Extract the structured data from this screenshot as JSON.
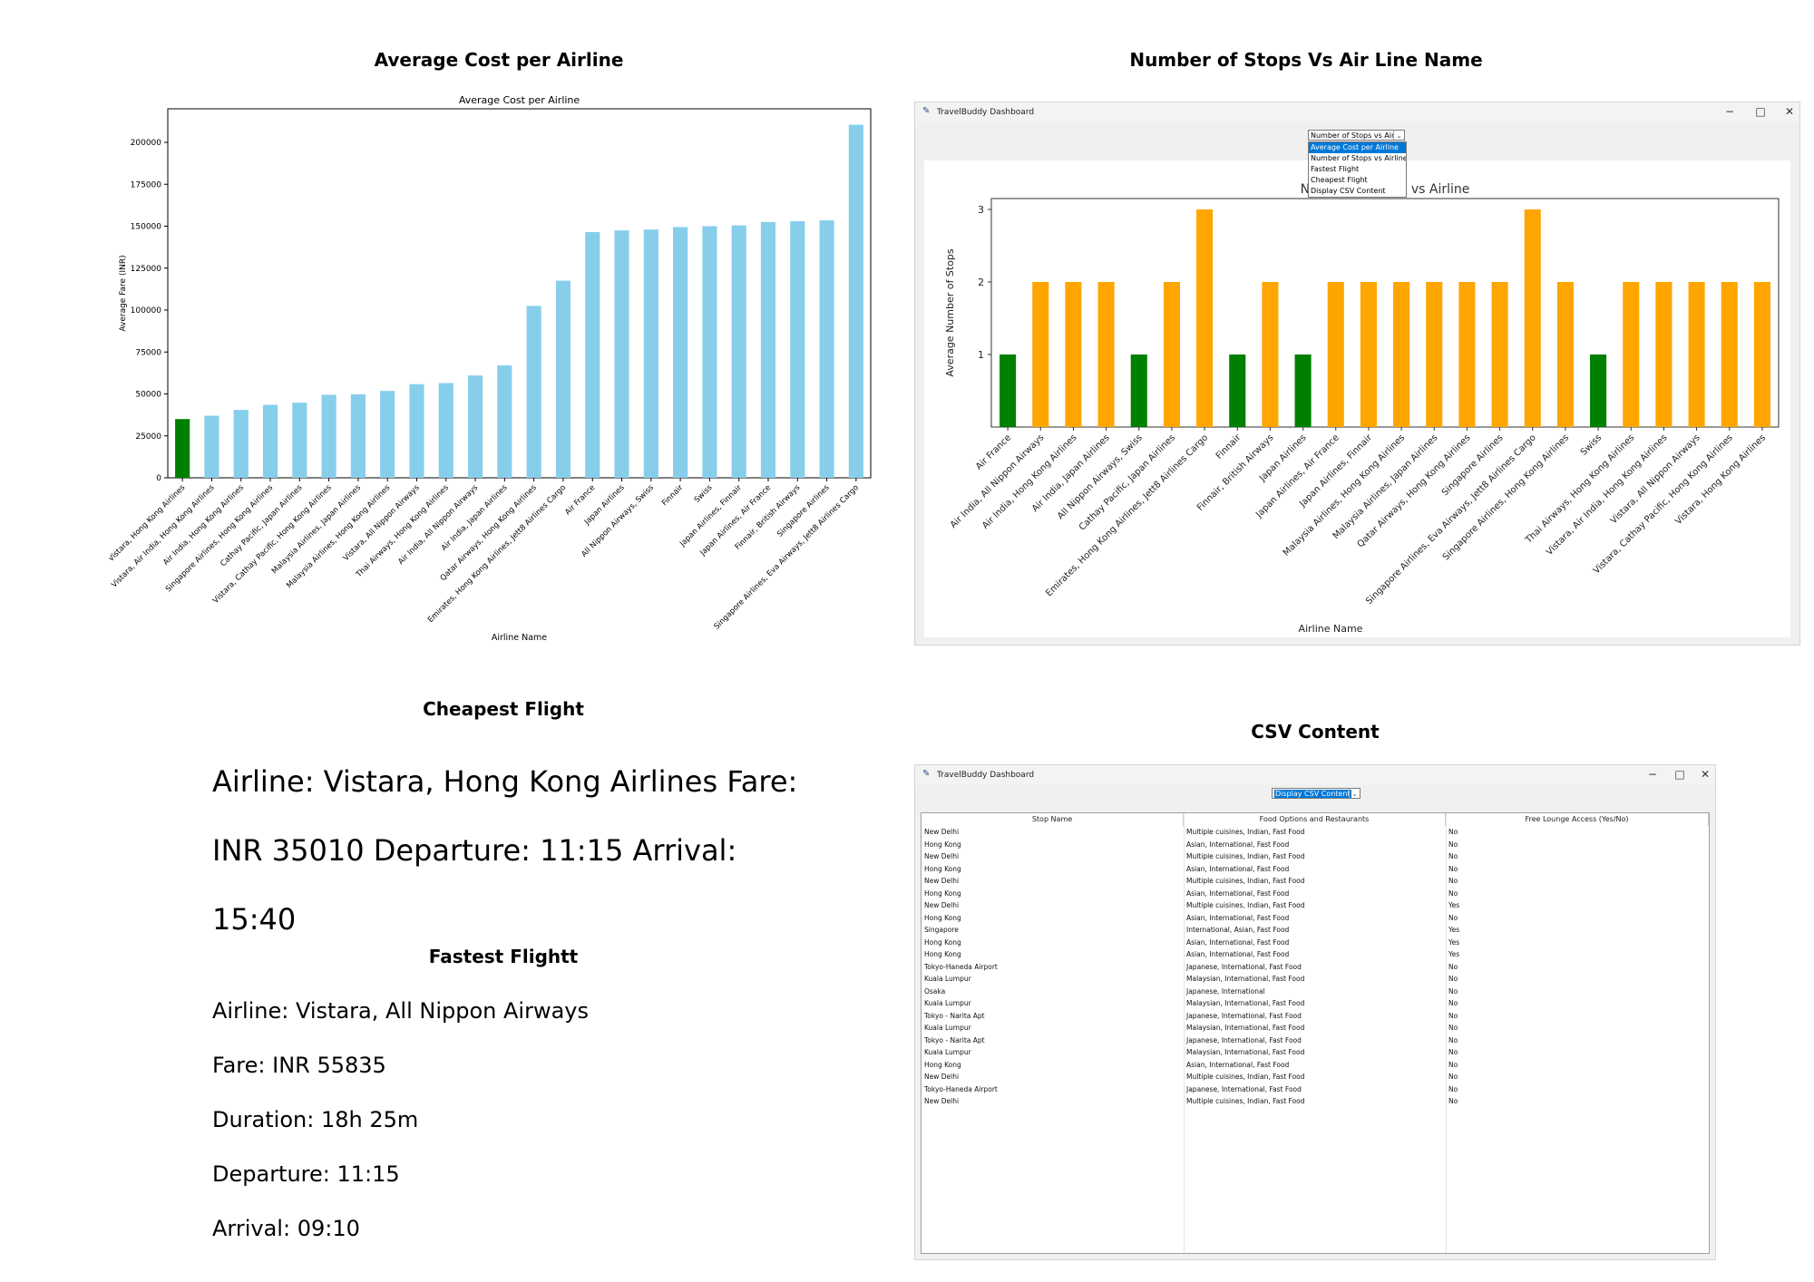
{
  "headings": {
    "avg_cost": "Average Cost per Airline",
    "stops": "Number of Stops Vs Air Line Name",
    "cheapest": "Cheapest Flight",
    "fastest": "Fastest Flightt",
    "csv": "CSV Content"
  },
  "window": {
    "title": "TravelBuddy Dashboard",
    "minimize_glyph": "−",
    "maximize_glyph": "□",
    "close_glyph": "✕",
    "feather_glyph": "✎"
  },
  "stops_window": {
    "combo_value": "Number of Stops vs Airline",
    "combo_arrow": "⌄",
    "options": [
      "Average Cost per Airline",
      "Number of Stops vs Airline",
      "Fastest Flight",
      "Cheapest Flight",
      "Display CSV Content"
    ],
    "selected_option_index": 0
  },
  "csv_window": {
    "combo_value": "Display CSV Content",
    "combo_arrow": "⌄",
    "columns": [
      "Stop Name",
      "Food Options and Restaurants",
      "Free Lounge Access (Yes/No)"
    ],
    "rows": [
      [
        "New Delhi",
        "Multiple cuisines, Indian, Fast Food",
        "No"
      ],
      [
        "Hong Kong",
        "Asian, International, Fast Food",
        "No"
      ],
      [
        "New Delhi",
        "Multiple cuisines, Indian, Fast Food",
        "No"
      ],
      [
        "Hong Kong",
        "Asian, International, Fast Food",
        "No"
      ],
      [
        "New Delhi",
        "Multiple cuisines, Indian, Fast Food",
        "No"
      ],
      [
        "Hong Kong",
        "Asian, International, Fast Food",
        "No"
      ],
      [
        "New Delhi",
        "Multiple cuisines, Indian, Fast Food",
        "Yes"
      ],
      [
        "Hong Kong",
        "Asian, International, Fast Food",
        "No"
      ],
      [
        "Singapore",
        "International, Asian, Fast Food",
        "Yes"
      ],
      [
        "Hong Kong",
        "Asian, International, Fast Food",
        "Yes"
      ],
      [
        "Hong Kong",
        "Asian, International, Fast Food",
        "Yes"
      ],
      [
        "Tokyo-Haneda Airport",
        "Japanese, International, Fast Food",
        "No"
      ],
      [
        "Kuala Lumpur",
        "Malaysian, International, Fast Food",
        "No"
      ],
      [
        "Osaka",
        "Japanese, International",
        "No"
      ],
      [
        "Kuala Lumpur",
        "Malaysian, International, Fast Food",
        "No"
      ],
      [
        "Tokyo - Narita Apt",
        "Japanese, International, Fast Food",
        "No"
      ],
      [
        "Kuala Lumpur",
        "Malaysian, International, Fast Food",
        "No"
      ],
      [
        "Tokyo - Narita Apt",
        "Japanese, International, Fast Food",
        "No"
      ],
      [
        "Kuala Lumpur",
        "Malaysian, International, Fast Food",
        "No"
      ],
      [
        "Hong Kong",
        "Asian, International, Fast Food",
        "No"
      ],
      [
        "New Delhi",
        "Multiple cuisines, Indian, Fast Food",
        "No"
      ],
      [
        "Tokyo-Haneda Airport",
        "Japanese, International, Fast Food",
        "No"
      ],
      [
        "New Delhi",
        "Multiple cuisines, Indian, Fast Food",
        "No"
      ]
    ]
  },
  "cheapest": {
    "lines": [
      "Airline: Vistara, Hong Kong Airlines Fare:",
      "INR 35010 Departure: 11:15 Arrival:",
      "15:40"
    ]
  },
  "fastest": {
    "airline": "Airline: Vistara, All Nippon Airways",
    "fare": "Fare: INR 55835",
    "duration": "Duration: 18h 25m",
    "departure": "Departure: 11:15",
    "arrival": "Arrival: 09:10"
  },
  "colors": {
    "bar_default": "#87ceeb",
    "bar_highlight": "#008000",
    "stops_high": "#ffa500",
    "stops_low": "#008000",
    "selection": "#0078d7"
  },
  "chart_data": [
    {
      "type": "bar",
      "title": "Average Cost per Airline",
      "xlabel": "Airline Name",
      "ylabel": "Average Fare (INR)",
      "ylim": [
        0,
        220000
      ],
      "yticks": [
        0,
        25000,
        50000,
        75000,
        100000,
        125000,
        150000,
        175000,
        200000
      ],
      "grid": false,
      "categories": [
        "Vistara, Hong Kong Airlines",
        "Vistara, Air India, Hong Kong Airlines",
        "Air India, Hong Kong Airlines",
        "Singapore Airlines, Hong Kong Airlines",
        "Cathay Pacific, Japan Airlines",
        "Vistara, Cathay Pacific, Hong Kong Airlines",
        "Malaysia Airlines, Japan Airlines",
        "Malaysia Airlines, Hong Kong Airlines",
        "Vistara, All Nippon Airways",
        "Thai Airways, Hong Kong Airlines",
        "Air India, All Nippon Airways",
        "Air India, Japan Airlines",
        "Qatar Airways, Hong Kong Airlines",
        "Emirates, Hong Kong Airlines, Jett8 Airlines Cargo",
        "Air France",
        "Japan Airlines",
        "All Nippon Airways, Swiss",
        "Finnair",
        "Swiss",
        "Japan Airlines, Finnair",
        "Japan Airlines, Air France",
        "Finnair, British Airways",
        "Singapore Airlines",
        "Singapore Airlines, Eva Airways, Jett8 Airlines Cargo"
      ],
      "values": [
        35010,
        37000,
        40500,
        43500,
        44800,
        49500,
        49800,
        51800,
        55835,
        56500,
        61000,
        67000,
        102500,
        117500,
        146500,
        147500,
        148000,
        149500,
        150000,
        150500,
        152500,
        153000,
        153500,
        210500
      ],
      "highlight_index": 0
    },
    {
      "type": "bar",
      "title": "Number of Stops vs Airline",
      "xlabel": "Airline Name",
      "ylabel": "Average Number of Stops",
      "ylim": [
        0,
        3.15
      ],
      "yticks": [
        1,
        2,
        3
      ],
      "grid": false,
      "categories": [
        "Air France",
        "Air India, All Nippon Airways",
        "Air India, Hong Kong Airlines",
        "Air India, Japan Airlines",
        "All Nippon Airways, Swiss",
        "Cathay Pacific, Japan Airlines",
        "Emirates, Hong Kong Airlines, Jett8 Airlines Cargo",
        "Finnair",
        "Finnair, British Airways",
        "Japan Airlines",
        "Japan Airlines, Air France",
        "Japan Airlines, Finnair",
        "Malaysia Airlines, Hong Kong Airlines",
        "Malaysia Airlines, Japan Airlines",
        "Qatar Airways, Hong Kong Airlines",
        "Singapore Airlines",
        "Singapore Airlines, Eva Airways, Jett8 Airlines Cargo",
        "Singapore Airlines, Hong Kong Airlines",
        "Swiss",
        "Thai Airways, Hong Kong Airlines",
        "Vistara, Air India, Hong Kong Airlines",
        "Vistara, All Nippon Airways",
        "Vistara, Cathay Pacific, Hong Kong Airlines",
        "Vistara, Hong Kong Airlines"
      ],
      "values": [
        1,
        2,
        2,
        2,
        1,
        2,
        3,
        1,
        2,
        1,
        2,
        2,
        2,
        2,
        2,
        2,
        3,
        2,
        1,
        2,
        2,
        2,
        2,
        2
      ]
    }
  ]
}
